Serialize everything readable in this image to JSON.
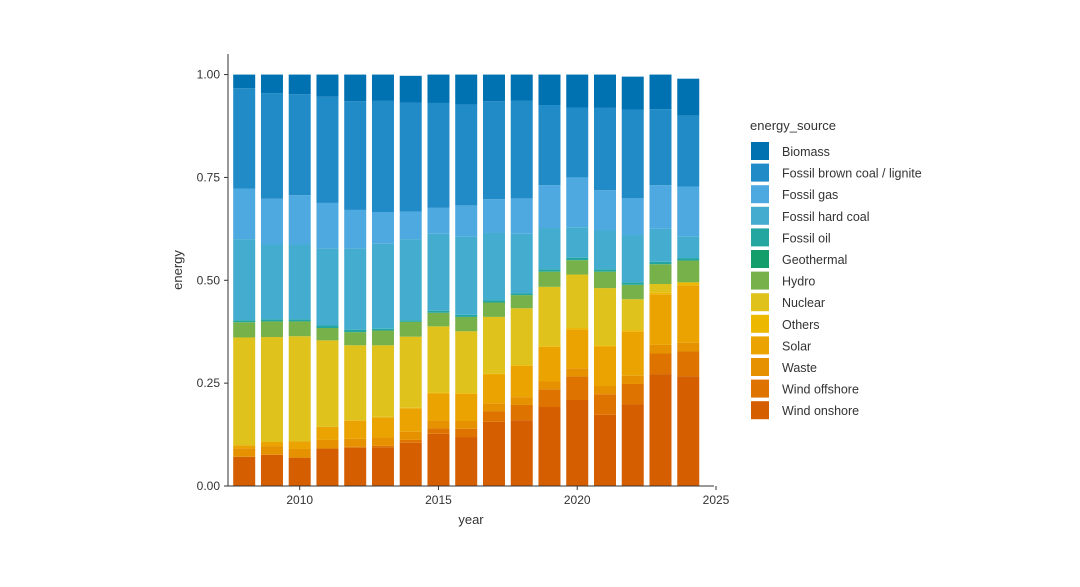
{
  "chart_data": {
    "type": "bar",
    "stacked": true,
    "normalized": true,
    "xlabel": "year",
    "ylabel": "energy",
    "xlim": [
      2007.2,
      2025
    ],
    "ylim": [
      0,
      1.05
    ],
    "xticks": [
      2010,
      2015,
      2020,
      2025
    ],
    "yticks": [
      0,
      0.25,
      0.5,
      0.75,
      1.0
    ],
    "ytick_labels": [
      "0.00",
      "0.25",
      "0.50",
      "0.75",
      "1.00"
    ],
    "grid": false,
    "legend": {
      "title": "energy_source",
      "placement": "right"
    },
    "categories": [
      2008,
      2009,
      2010,
      2011,
      2012,
      2013,
      2014,
      2015,
      2016,
      2017,
      2018,
      2019,
      2020,
      2021,
      2022,
      2023,
      2024
    ],
    "series": [
      {
        "name": "Wind onshore",
        "color": "#D55E00",
        "values": [
          0.071,
          0.076,
          0.069,
          0.091,
          0.093,
          0.094,
          0.105,
          0.127,
          0.119,
          0.156,
          0.16,
          0.192,
          0.209,
          0.173,
          0.198,
          0.272,
          0.267
        ]
      },
      {
        "name": "Wind offshore",
        "color": "#DE7300",
        "values": [
          0.0,
          0.0,
          0.0,
          0.0,
          0.002,
          0.004,
          0.007,
          0.013,
          0.02,
          0.026,
          0.037,
          0.043,
          0.057,
          0.05,
          0.05,
          0.05,
          0.06
        ]
      },
      {
        "name": "Waste",
        "color": "#E69200",
        "values": [
          0.021,
          0.021,
          0.021,
          0.021,
          0.02,
          0.02,
          0.02,
          0.019,
          0.019,
          0.019,
          0.019,
          0.019,
          0.02,
          0.02,
          0.02,
          0.021,
          0.021
        ]
      },
      {
        "name": "Solar",
        "color": "#EAA300",
        "values": [
          0.007,
          0.01,
          0.019,
          0.032,
          0.044,
          0.049,
          0.057,
          0.066,
          0.066,
          0.07,
          0.076,
          0.084,
          0.095,
          0.096,
          0.107,
          0.123,
          0.14
        ]
      },
      {
        "name": "Others",
        "color": "#ECB800",
        "values": [
          0.0,
          0.0,
          0.0,
          0.0,
          0.001,
          0.001,
          0.001,
          0.002,
          0.002,
          0.002,
          0.002,
          0.002,
          0.003,
          0.003,
          0.004,
          0.005,
          0.007
        ]
      },
      {
        "name": "Nuclear",
        "color": "#DFC21C",
        "values": [
          0.262,
          0.255,
          0.255,
          0.21,
          0.182,
          0.174,
          0.173,
          0.161,
          0.15,
          0.138,
          0.138,
          0.144,
          0.13,
          0.139,
          0.075,
          0.02,
          0.0
        ]
      },
      {
        "name": "Hydro",
        "color": "#77B14A",
        "values": [
          0.037,
          0.038,
          0.036,
          0.03,
          0.032,
          0.036,
          0.036,
          0.033,
          0.035,
          0.035,
          0.032,
          0.037,
          0.035,
          0.04,
          0.035,
          0.048,
          0.053
        ]
      },
      {
        "name": "Geothermal",
        "color": "#149E6C",
        "values": [
          0.0,
          0.0,
          0.0,
          0.0,
          0.0,
          0.0,
          0.0,
          0.0,
          0.0,
          0.0,
          0.0,
          0.0,
          0.0,
          0.0,
          0.0,
          0.0,
          0.0
        ]
      },
      {
        "name": "Fossil oil",
        "color": "#23A6A0",
        "values": [
          0.005,
          0.005,
          0.005,
          0.006,
          0.006,
          0.004,
          0.004,
          0.005,
          0.005,
          0.005,
          0.004,
          0.006,
          0.006,
          0.006,
          0.006,
          0.006,
          0.006
        ]
      },
      {
        "name": "Fossil hard coal",
        "color": "#44ADCF",
        "values": [
          0.197,
          0.182,
          0.182,
          0.187,
          0.197,
          0.207,
          0.197,
          0.187,
          0.19,
          0.164,
          0.145,
          0.1,
          0.074,
          0.094,
          0.115,
          0.08,
          0.053
        ]
      },
      {
        "name": "Fossil gas",
        "color": "#4EA9E0",
        "values": [
          0.123,
          0.111,
          0.12,
          0.111,
          0.094,
          0.077,
          0.067,
          0.063,
          0.076,
          0.082,
          0.086,
          0.104,
          0.121,
          0.098,
          0.09,
          0.106,
          0.121
        ]
      },
      {
        "name": "Fossil brown coal / lignite",
        "color": "#218BC8",
        "values": [
          0.244,
          0.257,
          0.245,
          0.258,
          0.264,
          0.27,
          0.265,
          0.255,
          0.245,
          0.238,
          0.238,
          0.195,
          0.17,
          0.2,
          0.215,
          0.185,
          0.172
        ]
      },
      {
        "name": "Biomass",
        "color": "#0071B1",
        "values": [
          0.033,
          0.045,
          0.048,
          0.054,
          0.065,
          0.064,
          0.065,
          0.069,
          0.073,
          0.065,
          0.063,
          0.074,
          0.08,
          0.081,
          0.08,
          0.084,
          0.09
        ]
      }
    ]
  }
}
